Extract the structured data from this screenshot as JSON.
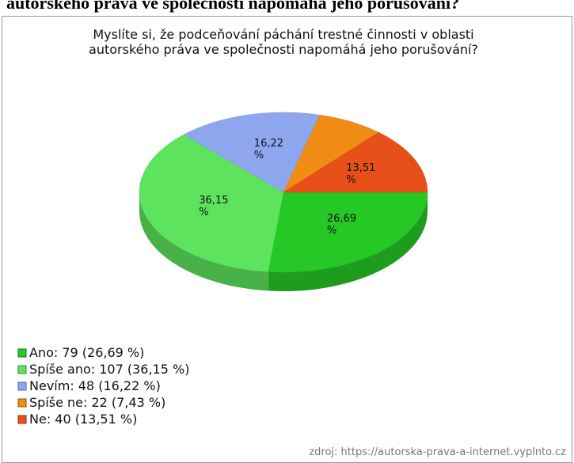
{
  "header": "autorského práva ve společnosti napomáhá jeho porušování?",
  "chart_data": {
    "type": "pie",
    "title": [
      "Myslíte si, že podceňování páchání trestné činnosti v oblasti",
      "autorského práva ve společnosti napomáhá jeho porušování?"
    ],
    "categories": [
      "Ano",
      "Spíše ano",
      "Nevím",
      "Spíše ne",
      "Ne"
    ],
    "values": [
      26.69,
      36.15,
      16.22,
      7.43,
      13.51
    ],
    "value_labels": [
      "26,69 %",
      "36,15 %",
      "16,22 %",
      null,
      "13,51 %"
    ],
    "colors": [
      "#25c825",
      "#5ee35e",
      "#8ea6ee",
      "#f08c14",
      "#e8501a"
    ],
    "legend": [
      "Ano: 79 (26,69 %)",
      "Spíše ano: 107 (36,15 %)",
      "Nevím: 48 (16,22 %)",
      "Spíše ne: 22 (7,43 %)",
      "Ne: 40 (13,51 %)"
    ],
    "source": "zdroj: https://autorska-prava-a-internet.vyplnto.cz"
  }
}
